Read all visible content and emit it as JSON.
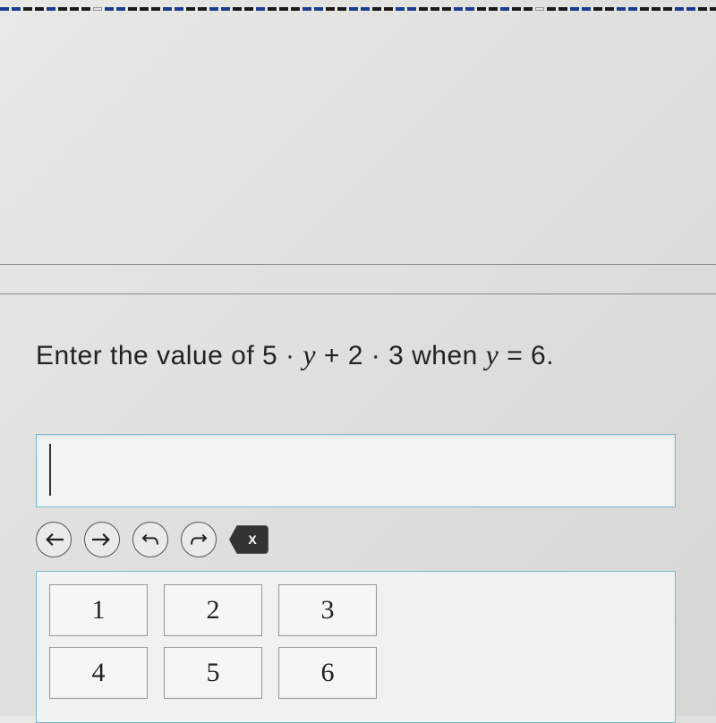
{
  "question": {
    "prefix": "Enter the value of 5 · ",
    "var1": "y",
    "mid": " + 2 · 3 when ",
    "var2": "y",
    "suffix": " = 6."
  },
  "input": {
    "value": "",
    "placeholder": ""
  },
  "toolbar": {
    "left_arrow": "←",
    "right_arrow": "→",
    "undo": "↶",
    "redo": "↷",
    "backspace": "X"
  },
  "keypad": {
    "rows": [
      [
        "1",
        "2",
        "3"
      ],
      [
        "4",
        "5",
        "6"
      ]
    ]
  },
  "styling": {
    "background_gradient": [
      "#e8e8e5",
      "#d5d7d4"
    ],
    "input_border": "#7db8c9",
    "input_bg": "#f0f4f3",
    "key_border": "#999999",
    "key_bg": "#f5f7f5",
    "text_color": "#222222",
    "question_fontsize": 30,
    "key_fontsize": 30,
    "tool_btn_size": 40,
    "dash_colors": [
      "#1a3d8f",
      "#1a1a1a",
      "#e0e0e0"
    ]
  }
}
